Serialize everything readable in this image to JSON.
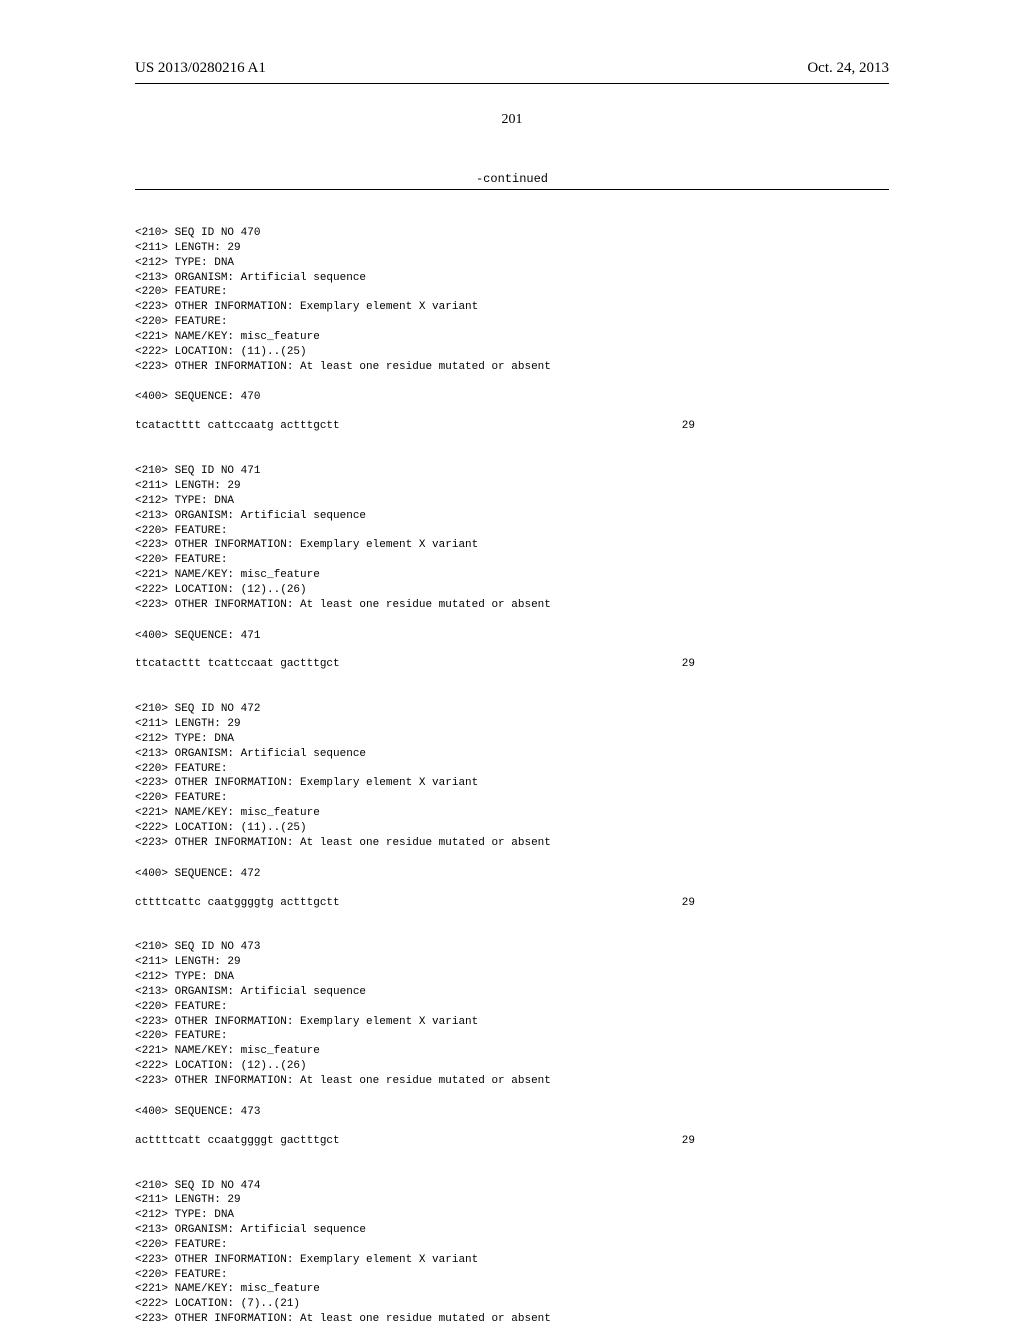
{
  "header": {
    "publication_number": "US 2013/0280216 A1",
    "publication_date": "Oct. 24, 2013"
  },
  "page_number": "201",
  "continued_label": "-continued",
  "sequences": [
    {
      "id_line": "<210> SEQ ID NO 470",
      "length_line": "<211> LENGTH: 29",
      "type_line": "<212> TYPE: DNA",
      "organism_line": "<213> ORGANISM: Artificial sequence",
      "feature1_line": "<220> FEATURE:",
      "otherinfo1_line": "<223> OTHER INFORMATION: Exemplary element X variant",
      "feature2_line": "<220> FEATURE:",
      "namekey_line": "<221> NAME/KEY: misc_feature",
      "location_line": "<222> LOCATION: (11)..(25)",
      "otherinfo2_line": "<223> OTHER INFORMATION: At least one residue mutated or absent",
      "seq_header": "<400> SEQUENCE: 470",
      "seq_data": "tcatactttt cattccaatg actttgctt",
      "seq_count": "29"
    },
    {
      "id_line": "<210> SEQ ID NO 471",
      "length_line": "<211> LENGTH: 29",
      "type_line": "<212> TYPE: DNA",
      "organism_line": "<213> ORGANISM: Artificial sequence",
      "feature1_line": "<220> FEATURE:",
      "otherinfo1_line": "<223> OTHER INFORMATION: Exemplary element X variant",
      "feature2_line": "<220> FEATURE:",
      "namekey_line": "<221> NAME/KEY: misc_feature",
      "location_line": "<222> LOCATION: (12)..(26)",
      "otherinfo2_line": "<223> OTHER INFORMATION: At least one residue mutated or absent",
      "seq_header": "<400> SEQUENCE: 471",
      "seq_data": "ttcatacttt tcattccaat gactttgct",
      "seq_count": "29"
    },
    {
      "id_line": "<210> SEQ ID NO 472",
      "length_line": "<211> LENGTH: 29",
      "type_line": "<212> TYPE: DNA",
      "organism_line": "<213> ORGANISM: Artificial sequence",
      "feature1_line": "<220> FEATURE:",
      "otherinfo1_line": "<223> OTHER INFORMATION: Exemplary element X variant",
      "feature2_line": "<220> FEATURE:",
      "namekey_line": "<221> NAME/KEY: misc_feature",
      "location_line": "<222> LOCATION: (11)..(25)",
      "otherinfo2_line": "<223> OTHER INFORMATION: At least one residue mutated or absent",
      "seq_header": "<400> SEQUENCE: 472",
      "seq_data": "cttttcattc caatggggtg actttgctt",
      "seq_count": "29"
    },
    {
      "id_line": "<210> SEQ ID NO 473",
      "length_line": "<211> LENGTH: 29",
      "type_line": "<212> TYPE: DNA",
      "organism_line": "<213> ORGANISM: Artificial sequence",
      "feature1_line": "<220> FEATURE:",
      "otherinfo1_line": "<223> OTHER INFORMATION: Exemplary element X variant",
      "feature2_line": "<220> FEATURE:",
      "namekey_line": "<221> NAME/KEY: misc_feature",
      "location_line": "<222> LOCATION: (12)..(26)",
      "otherinfo2_line": "<223> OTHER INFORMATION: At least one residue mutated or absent",
      "seq_header": "<400> SEQUENCE: 473",
      "seq_data": "acttttcatt ccaatggggt gactttgct",
      "seq_count": "29"
    },
    {
      "id_line": "<210> SEQ ID NO 474",
      "length_line": "<211> LENGTH: 29",
      "type_line": "<212> TYPE: DNA",
      "organism_line": "<213> ORGANISM: Artificial sequence",
      "feature1_line": "<220> FEATURE:",
      "otherinfo1_line": "<223> OTHER INFORMATION: Exemplary element X variant",
      "feature2_line": "<220> FEATURE:",
      "namekey_line": "<221> NAME/KEY: misc_feature",
      "location_line": "<222> LOCATION: (7)..(21)",
      "otherinfo2_line": "<223> OTHER INFORMATION: At least one residue mutated or absent",
      "seq_header": "",
      "seq_data": "",
      "seq_count": ""
    }
  ]
}
